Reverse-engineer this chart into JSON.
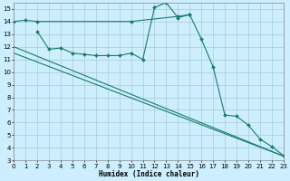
{
  "xlabel": "Humidex (Indice chaleur)",
  "bg_color": "#cceeff",
  "grid_color": "#aacccc",
  "line_color": "#1a7a6e",
  "xlim": [
    0,
    23
  ],
  "ylim": [
    3,
    15.5
  ],
  "yticks": [
    3,
    4,
    5,
    6,
    7,
    8,
    9,
    10,
    11,
    12,
    13,
    14,
    15
  ],
  "xticks": [
    0,
    1,
    2,
    3,
    4,
    5,
    6,
    7,
    8,
    9,
    10,
    11,
    12,
    13,
    14,
    15,
    16,
    17,
    18,
    19,
    20,
    21,
    22,
    23
  ],
  "series": [
    {
      "x": [
        0,
        1,
        2,
        10,
        14,
        15
      ],
      "y": [
        14.0,
        14.1,
        14.0,
        14.0,
        14.4,
        14.55
      ],
      "marker": true,
      "linestyle": "-"
    },
    {
      "x": [
        2,
        3,
        4,
        5,
        6,
        7,
        8,
        9,
        10,
        11,
        12,
        13,
        14,
        15,
        16,
        17,
        18,
        19,
        20,
        21,
        22,
        23
      ],
      "y": [
        13.2,
        11.8,
        11.9,
        11.5,
        11.4,
        11.3,
        11.3,
        11.3,
        11.5,
        11.0,
        15.1,
        15.5,
        14.3,
        14.55,
        12.6,
        10.4,
        6.6,
        6.5,
        5.8,
        4.7,
        4.1,
        3.4
      ],
      "marker": true,
      "linestyle": "-"
    },
    {
      "x": [
        0,
        23
      ],
      "y": [
        12.0,
        3.35
      ],
      "marker": false,
      "linestyle": "-"
    },
    {
      "x": [
        0,
        23
      ],
      "y": [
        11.5,
        3.35
      ],
      "marker": false,
      "linestyle": "-"
    }
  ]
}
